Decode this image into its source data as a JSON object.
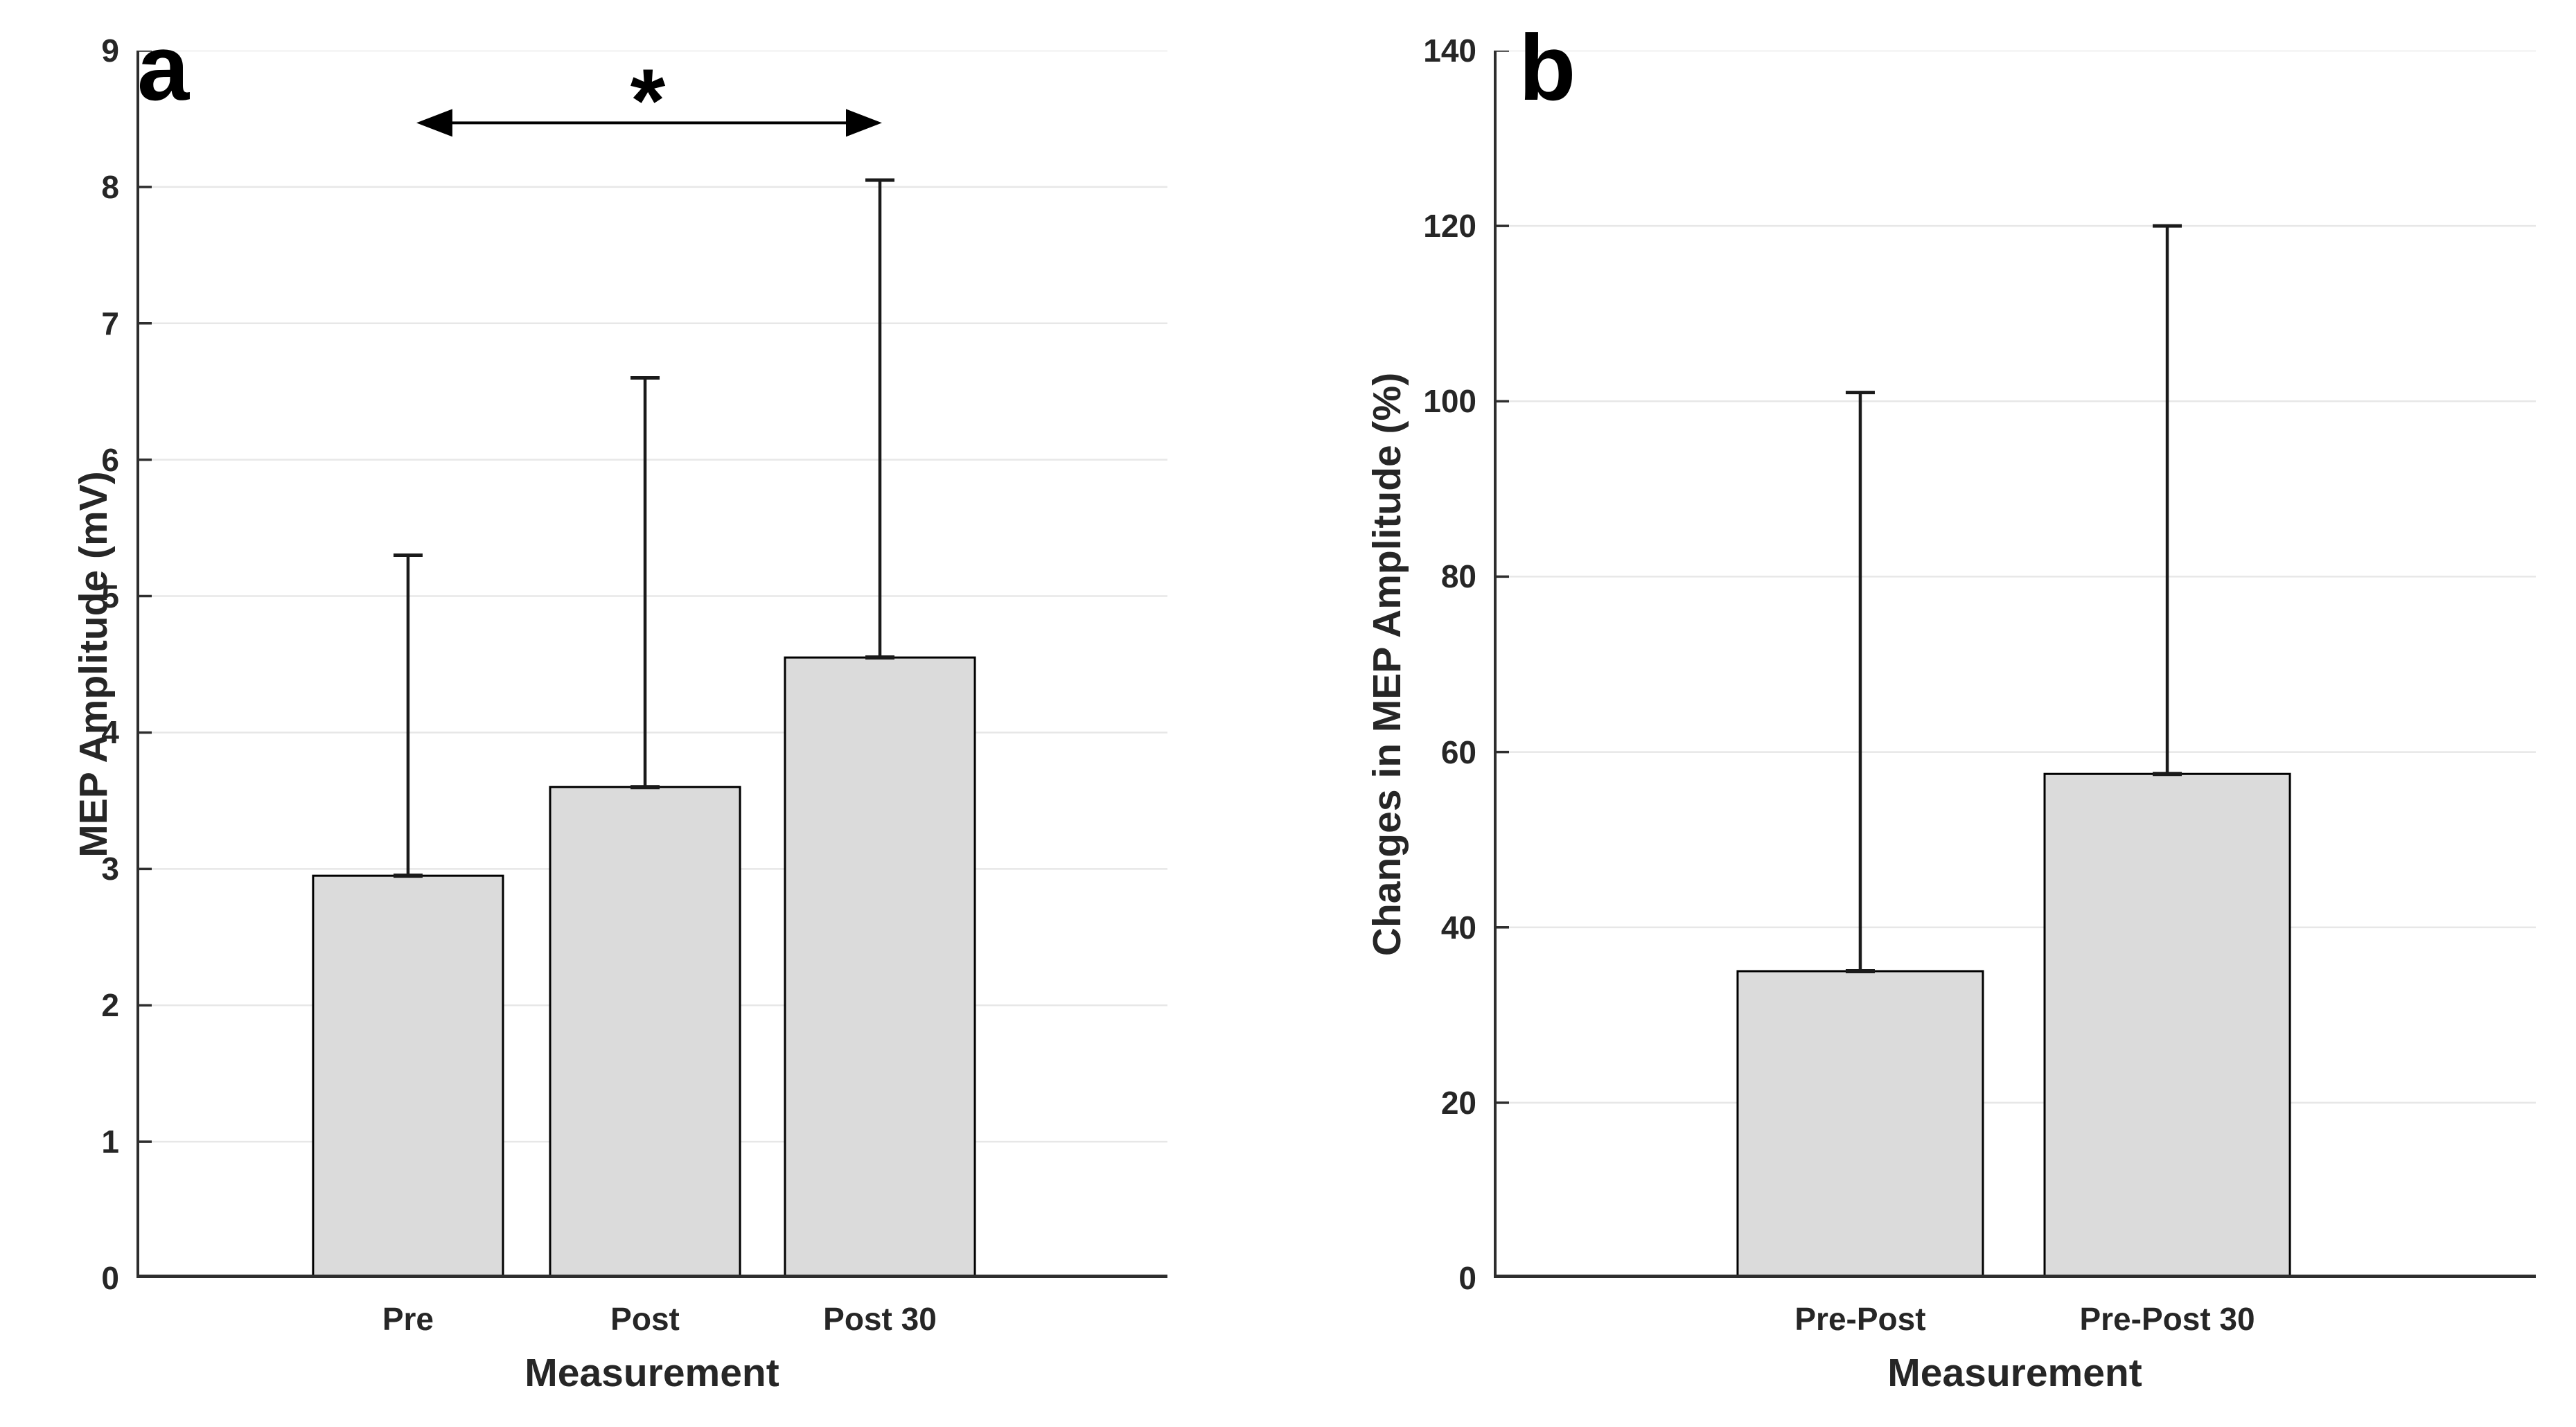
{
  "figure": {
    "background": "#ffffff"
  },
  "style": {
    "bar_fill": "#dbdbdb",
    "bar_edge": "#000000",
    "error_bar_color": "#1a1a1a",
    "grid_color": "#e7e7e7",
    "axis_color": "#2e2e2e",
    "text_color": "#262626",
    "panel_letter_color": "#000000"
  },
  "chart_data": [
    {
      "type": "bar",
      "panel_label": "a",
      "title": "",
      "xlabel": "Measurement",
      "ylabel": "MEP Amplitude (mV)",
      "categories": [
        "Pre",
        "Post",
        "Post 30"
      ],
      "values": [
        2.95,
        3.6,
        4.55
      ],
      "error_upper": [
        2.35,
        3.0,
        3.5
      ],
      "error_tops": [
        5.3,
        6.6,
        8.05
      ],
      "ylim": [
        0,
        9
      ],
      "yticks": [
        0,
        1,
        2,
        3,
        4,
        5,
        6,
        7,
        8,
        9
      ],
      "grid": true,
      "legend": "none",
      "annotation": {
        "symbol": "*",
        "type": "double-headed-arrow",
        "between": [
          "Pre",
          "Post 30"
        ],
        "y_value": 8.47
      }
    },
    {
      "type": "bar",
      "panel_label": "b",
      "title": "",
      "xlabel": "Measurement",
      "ylabel": "Changes in MEP Amplitude (%)",
      "categories": [
        "Pre-Post",
        "Pre-Post 30"
      ],
      "values": [
        35,
        57.5
      ],
      "error_upper": [
        66,
        62.5
      ],
      "error_tops": [
        101,
        120
      ],
      "ylim": [
        0,
        140
      ],
      "yticks": [
        0,
        20,
        40,
        60,
        80,
        100,
        120,
        140
      ],
      "grid": true,
      "legend": "none"
    }
  ]
}
